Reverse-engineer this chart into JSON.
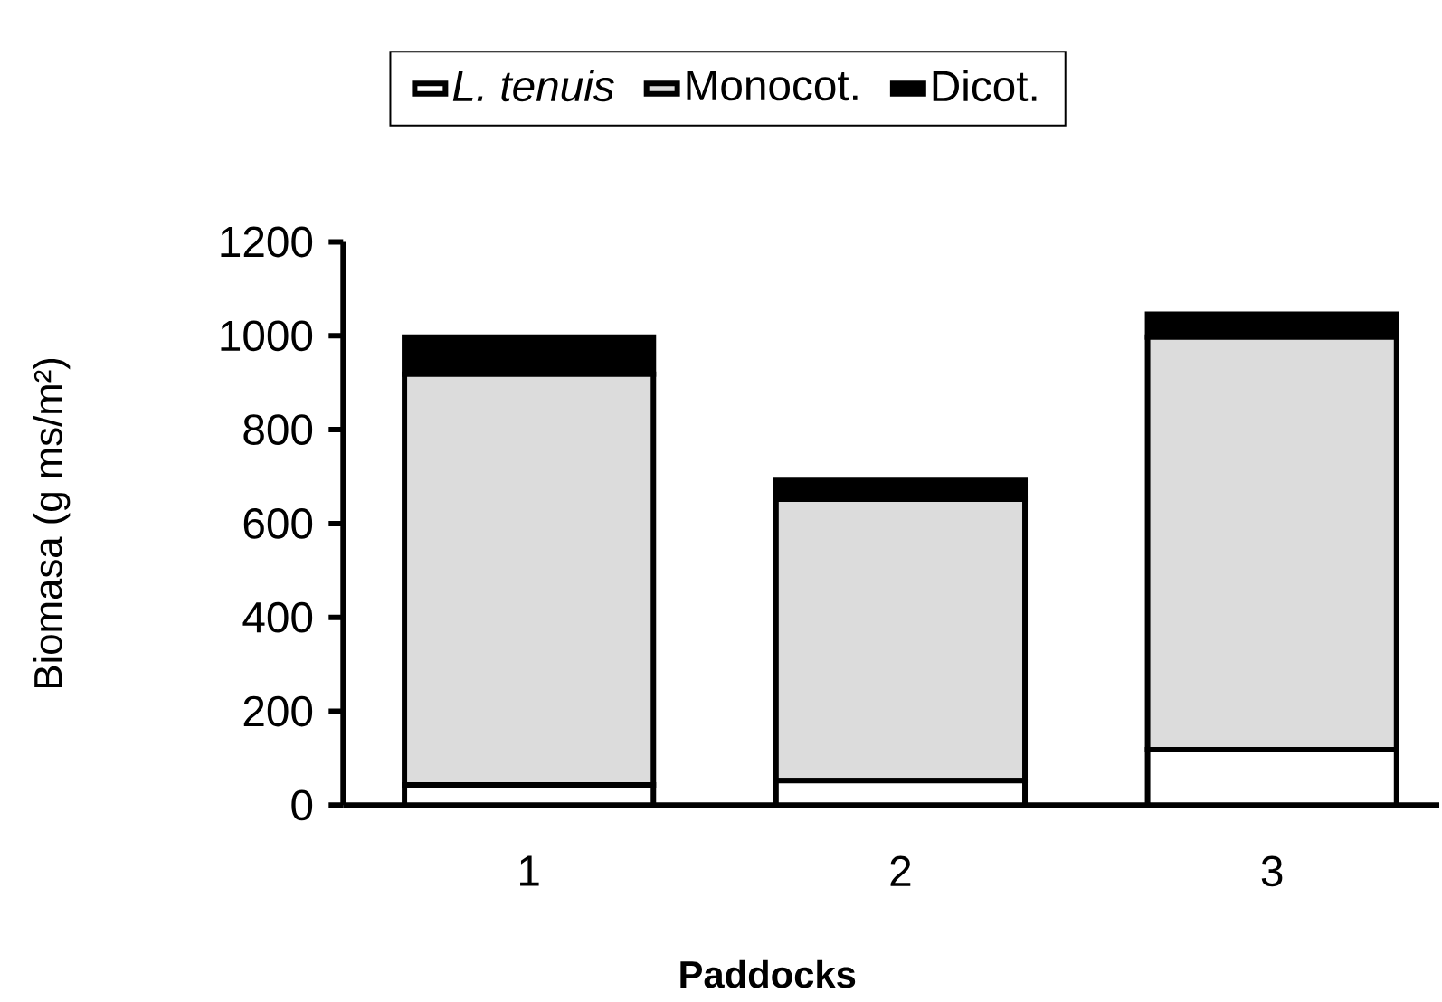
{
  "chart_data": {
    "type": "bar",
    "stacked": true,
    "xlabel": "Paddocks",
    "ylabel": "Biomasa (g ms/m²)",
    "categories": [
      "1",
      "2",
      "3"
    ],
    "series": [
      {
        "name": "*L. tenuis*",
        "color": "#ffffff",
        "values": [
          43,
          52,
          118
        ]
      },
      {
        "name": "Monocot.",
        "color": "#dcdcdc",
        "values": [
          875,
          600,
          879
        ]
      },
      {
        "name": "Dicot.",
        "color": "#000000",
        "values": [
          79,
          40,
          49
        ]
      }
    ],
    "ylim": [
      0,
      1200
    ],
    "yticks": [
      0,
      200,
      400,
      600,
      800,
      1000,
      1200
    ],
    "legend": "top"
  }
}
